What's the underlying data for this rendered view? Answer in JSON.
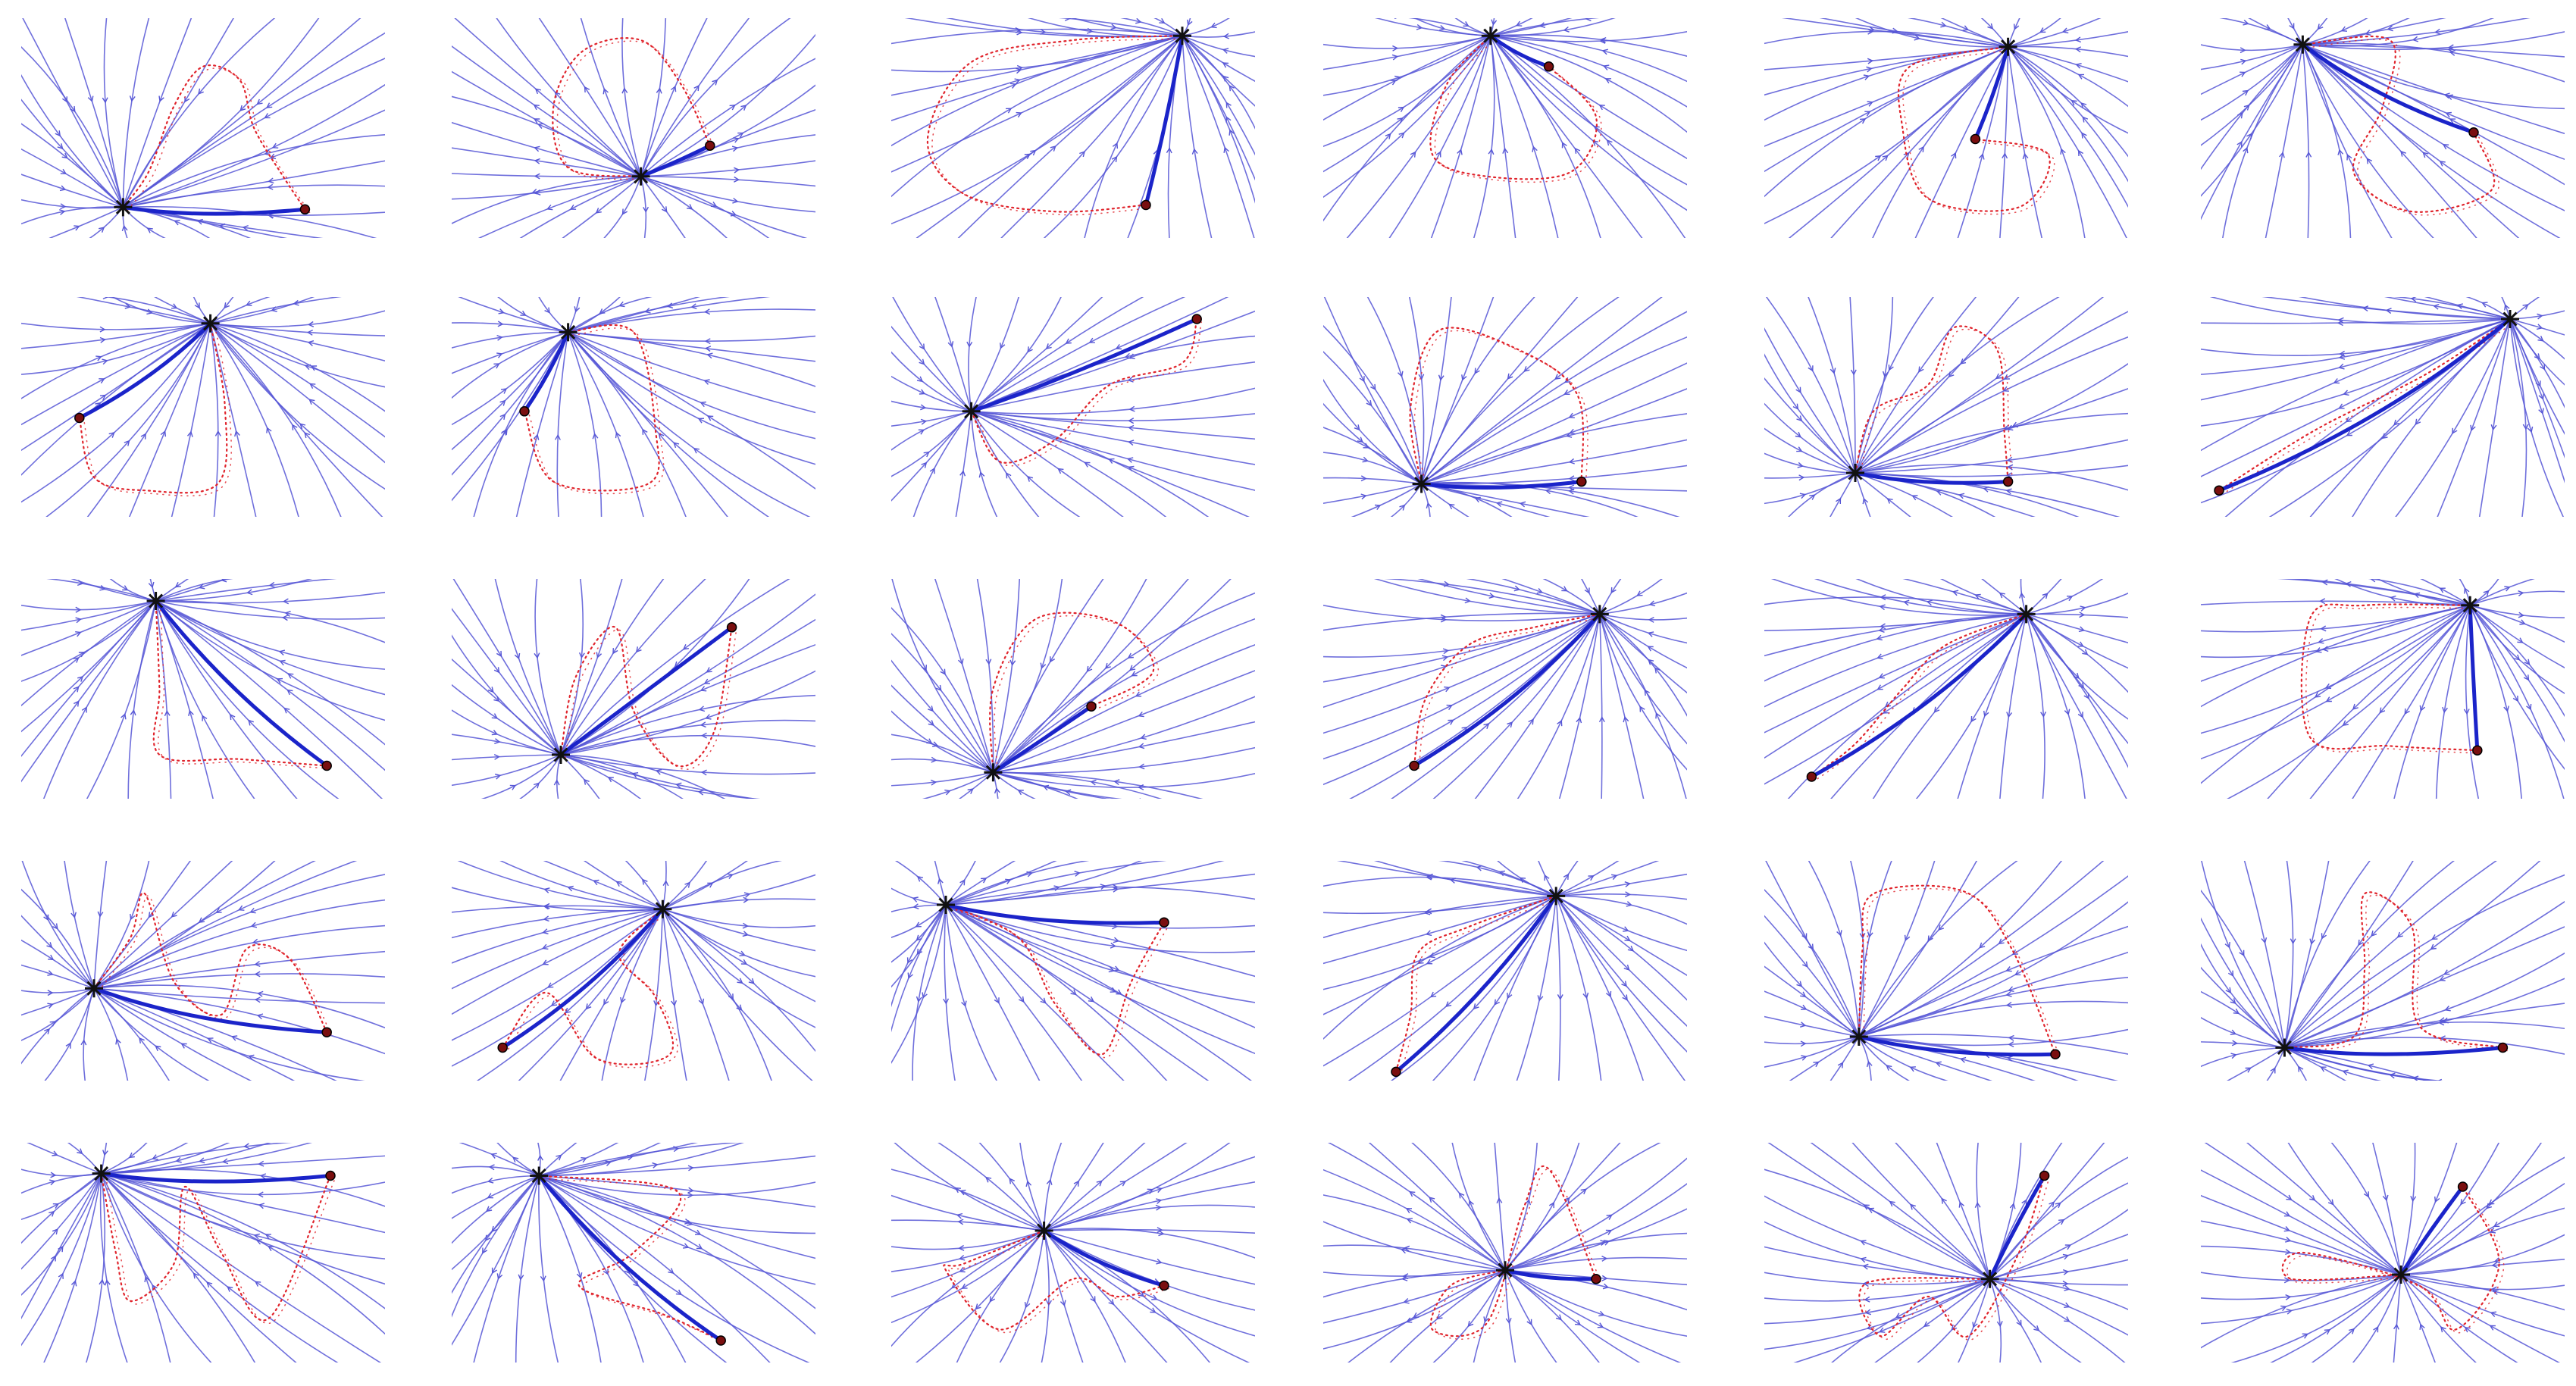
{
  "figure": {
    "rows": 5,
    "columns": 6,
    "colors": {
      "background": "#ffffff",
      "streamline": "#5656d6",
      "main_path": "#1b24c9",
      "dotted_path": "#e0242c",
      "start_marker": "#111111",
      "end_marker": "#7a0f0f"
    },
    "marker_icons": {
      "start": "star-icon",
      "end": "circle-dot-icon"
    },
    "panels": [
      {
        "id": "r1c1",
        "flow": "convergent",
        "start": [
          0.28,
          0.86
        ],
        "end": [
          0.78,
          0.87
        ],
        "loop": [
          [
            0.28,
            0.86
          ],
          [
            0.35,
            0.7
          ],
          [
            0.42,
            0.4
          ],
          [
            0.5,
            0.22
          ],
          [
            0.6,
            0.28
          ],
          [
            0.64,
            0.5
          ],
          [
            0.72,
            0.72
          ],
          [
            0.78,
            0.87
          ]
        ]
      },
      {
        "id": "r1c2",
        "flow": "divergent",
        "start": [
          0.52,
          0.72
        ],
        "end": [
          0.71,
          0.58
        ],
        "loop": [
          [
            0.52,
            0.72
          ],
          [
            0.32,
            0.68
          ],
          [
            0.28,
            0.4
          ],
          [
            0.36,
            0.15
          ],
          [
            0.52,
            0.1
          ],
          [
            0.63,
            0.3
          ],
          [
            0.71,
            0.58
          ]
        ]
      },
      {
        "id": "r1c3",
        "flow": "convergent",
        "start": [
          0.8,
          0.08
        ],
        "end": [
          0.7,
          0.85
        ],
        "loop": [
          [
            0.8,
            0.08
          ],
          [
            0.5,
            0.1
          ],
          [
            0.22,
            0.2
          ],
          [
            0.1,
            0.55
          ],
          [
            0.2,
            0.8
          ],
          [
            0.45,
            0.88
          ],
          [
            0.7,
            0.85
          ]
        ]
      },
      {
        "id": "r1c4",
        "flow": "convergent",
        "start": [
          0.46,
          0.08
        ],
        "end": [
          0.62,
          0.22
        ],
        "loop": [
          [
            0.46,
            0.08
          ],
          [
            0.34,
            0.3
          ],
          [
            0.3,
            0.62
          ],
          [
            0.45,
            0.72
          ],
          [
            0.68,
            0.7
          ],
          [
            0.75,
            0.45
          ],
          [
            0.62,
            0.22
          ]
        ]
      },
      {
        "id": "r1c5",
        "flow": "convergent",
        "start": [
          0.67,
          0.13
        ],
        "end": [
          0.58,
          0.55
        ],
        "loop": [
          [
            0.67,
            0.13
          ],
          [
            0.4,
            0.22
          ],
          [
            0.38,
            0.5
          ],
          [
            0.45,
            0.82
          ],
          [
            0.7,
            0.86
          ],
          [
            0.78,
            0.62
          ],
          [
            0.58,
            0.55
          ]
        ]
      },
      {
        "id": "r1c6",
        "flow": "convergent",
        "start": [
          0.28,
          0.12
        ],
        "end": [
          0.75,
          0.52
        ],
        "loop": [
          [
            0.28,
            0.12
          ],
          [
            0.52,
            0.1
          ],
          [
            0.5,
            0.4
          ],
          [
            0.42,
            0.7
          ],
          [
            0.58,
            0.88
          ],
          [
            0.8,
            0.78
          ],
          [
            0.75,
            0.52
          ]
        ]
      },
      {
        "id": "r2c1",
        "flow": "convergent",
        "start": [
          0.52,
          0.12
        ],
        "end": [
          0.16,
          0.55
        ],
        "loop": [
          [
            0.52,
            0.12
          ],
          [
            0.56,
            0.5
          ],
          [
            0.54,
            0.85
          ],
          [
            0.34,
            0.88
          ],
          [
            0.2,
            0.82
          ],
          [
            0.16,
            0.55
          ]
        ]
      },
      {
        "id": "r2c2",
        "flow": "convergent",
        "start": [
          0.32,
          0.16
        ],
        "end": [
          0.2,
          0.52
        ],
        "loop": [
          [
            0.32,
            0.16
          ],
          [
            0.5,
            0.16
          ],
          [
            0.56,
            0.6
          ],
          [
            0.54,
            0.85
          ],
          [
            0.28,
            0.84
          ],
          [
            0.2,
            0.52
          ]
        ]
      },
      {
        "id": "r2c3",
        "flow": "convergent",
        "start": [
          0.22,
          0.52
        ],
        "end": [
          0.84,
          0.1
        ],
        "loop": [
          [
            0.22,
            0.52
          ],
          [
            0.3,
            0.75
          ],
          [
            0.45,
            0.65
          ],
          [
            0.6,
            0.4
          ],
          [
            0.8,
            0.3
          ],
          [
            0.84,
            0.1
          ]
        ]
      },
      {
        "id": "r2c4",
        "flow": "convergent",
        "start": [
          0.27,
          0.85
        ],
        "end": [
          0.71,
          0.84
        ],
        "loop": [
          [
            0.27,
            0.85
          ],
          [
            0.24,
            0.5
          ],
          [
            0.32,
            0.15
          ],
          [
            0.55,
            0.25
          ],
          [
            0.7,
            0.45
          ],
          [
            0.71,
            0.84
          ]
        ]
      },
      {
        "id": "r2c5",
        "flow": "convergent",
        "start": [
          0.25,
          0.8
        ],
        "end": [
          0.67,
          0.84
        ],
        "loop": [
          [
            0.25,
            0.8
          ],
          [
            0.3,
            0.52
          ],
          [
            0.45,
            0.4
          ],
          [
            0.52,
            0.14
          ],
          [
            0.64,
            0.24
          ],
          [
            0.66,
            0.62
          ],
          [
            0.67,
            0.84
          ]
        ]
      },
      {
        "id": "r2c6",
        "flow": "divergent",
        "start": [
          0.85,
          0.1
        ],
        "end": [
          0.05,
          0.88
        ],
        "loop": [
          [
            0.85,
            0.1
          ],
          [
            0.62,
            0.35
          ],
          [
            0.32,
            0.6
          ],
          [
            0.05,
            0.88
          ]
        ]
      },
      {
        "id": "r3c1",
        "flow": "convergent",
        "start": [
          0.37,
          0.1
        ],
        "end": [
          0.84,
          0.85
        ],
        "loop": [
          [
            0.37,
            0.1
          ],
          [
            0.38,
            0.5
          ],
          [
            0.38,
            0.8
          ],
          [
            0.6,
            0.82
          ],
          [
            0.84,
            0.85
          ]
        ]
      },
      {
        "id": "r3c2",
        "flow": "convergent",
        "start": [
          0.3,
          0.8
        ],
        "end": [
          0.77,
          0.22
        ],
        "loop": [
          [
            0.3,
            0.8
          ],
          [
            0.34,
            0.45
          ],
          [
            0.45,
            0.22
          ],
          [
            0.5,
            0.6
          ],
          [
            0.62,
            0.85
          ],
          [
            0.72,
            0.7
          ],
          [
            0.77,
            0.22
          ]
        ]
      },
      {
        "id": "r3c3",
        "flow": "convergent",
        "start": [
          0.28,
          0.88
        ],
        "end": [
          0.55,
          0.58
        ],
        "loop": [
          [
            0.28,
            0.88
          ],
          [
            0.28,
            0.5
          ],
          [
            0.4,
            0.18
          ],
          [
            0.62,
            0.2
          ],
          [
            0.72,
            0.42
          ],
          [
            0.55,
            0.58
          ]
        ]
      },
      {
        "id": "r3c4",
        "flow": "convergent",
        "start": [
          0.76,
          0.16
        ],
        "end": [
          0.25,
          0.85
        ],
        "loop": [
          [
            0.76,
            0.16
          ],
          [
            0.58,
            0.22
          ],
          [
            0.4,
            0.3
          ],
          [
            0.28,
            0.55
          ],
          [
            0.25,
            0.85
          ]
        ]
      },
      {
        "id": "r3c5",
        "flow": "divergent",
        "start": [
          0.72,
          0.16
        ],
        "end": [
          0.13,
          0.9
        ],
        "loop": [
          [
            0.72,
            0.16
          ],
          [
            0.5,
            0.3
          ],
          [
            0.38,
            0.5
          ],
          [
            0.25,
            0.75
          ],
          [
            0.13,
            0.9
          ]
        ]
      },
      {
        "id": "r3c6",
        "flow": "divergent",
        "start": [
          0.74,
          0.12
        ],
        "end": [
          0.76,
          0.78
        ],
        "loop": [
          [
            0.74,
            0.12
          ],
          [
            0.45,
            0.12
          ],
          [
            0.3,
            0.18
          ],
          [
            0.3,
            0.72
          ],
          [
            0.52,
            0.76
          ],
          [
            0.76,
            0.78
          ]
        ]
      },
      {
        "id": "r4c1",
        "flow": "convergent",
        "start": [
          0.2,
          0.58
        ],
        "end": [
          0.84,
          0.78
        ],
        "loop": [
          [
            0.2,
            0.58
          ],
          [
            0.3,
            0.35
          ],
          [
            0.34,
            0.15
          ],
          [
            0.42,
            0.55
          ],
          [
            0.55,
            0.7
          ],
          [
            0.62,
            0.4
          ],
          [
            0.74,
            0.45
          ],
          [
            0.84,
            0.78
          ]
        ]
      },
      {
        "id": "r4c2",
        "flow": "divergent",
        "start": [
          0.58,
          0.22
        ],
        "end": [
          0.14,
          0.85
        ],
        "loop": [
          [
            0.58,
            0.22
          ],
          [
            0.46,
            0.42
          ],
          [
            0.56,
            0.62
          ],
          [
            0.6,
            0.88
          ],
          [
            0.4,
            0.9
          ],
          [
            0.26,
            0.6
          ],
          [
            0.14,
            0.85
          ]
        ]
      },
      {
        "id": "r4c3",
        "flow": "divergent",
        "start": [
          0.15,
          0.2
        ],
        "end": [
          0.75,
          0.28
        ],
        "loop": [
          [
            0.15,
            0.2
          ],
          [
            0.35,
            0.35
          ],
          [
            0.45,
            0.65
          ],
          [
            0.58,
            0.88
          ],
          [
            0.66,
            0.55
          ],
          [
            0.75,
            0.28
          ]
        ]
      },
      {
        "id": "r4c4",
        "flow": "divergent",
        "start": [
          0.64,
          0.16
        ],
        "end": [
          0.2,
          0.96
        ],
        "loop": [
          [
            0.64,
            0.16
          ],
          [
            0.4,
            0.3
          ],
          [
            0.26,
            0.42
          ],
          [
            0.24,
            0.7
          ],
          [
            0.2,
            0.96
          ]
        ]
      },
      {
        "id": "r4c5",
        "flow": "convergent",
        "start": [
          0.26,
          0.8
        ],
        "end": [
          0.8,
          0.88
        ],
        "loop": [
          [
            0.26,
            0.8
          ],
          [
            0.27,
            0.4
          ],
          [
            0.3,
            0.15
          ],
          [
            0.55,
            0.14
          ],
          [
            0.68,
            0.4
          ],
          [
            0.8,
            0.88
          ]
        ]
      },
      {
        "id": "r4c6",
        "flow": "convergent",
        "start": [
          0.23,
          0.85
        ],
        "end": [
          0.83,
          0.85
        ],
        "loop": [
          [
            0.23,
            0.85
          ],
          [
            0.42,
            0.8
          ],
          [
            0.45,
            0.5
          ],
          [
            0.45,
            0.15
          ],
          [
            0.58,
            0.3
          ],
          [
            0.6,
            0.75
          ],
          [
            0.83,
            0.85
          ]
        ]
      },
      {
        "id": "r5c1",
        "flow": "convergent",
        "start": [
          0.22,
          0.14
        ],
        "end": [
          0.85,
          0.15
        ],
        "loop": [
          [
            0.22,
            0.14
          ],
          [
            0.26,
            0.5
          ],
          [
            0.3,
            0.72
          ],
          [
            0.42,
            0.55
          ],
          [
            0.45,
            0.2
          ],
          [
            0.55,
            0.5
          ],
          [
            0.68,
            0.8
          ],
          [
            0.85,
            0.15
          ]
        ]
      },
      {
        "id": "r5c2",
        "flow": "divergent",
        "start": [
          0.24,
          0.15
        ],
        "end": [
          0.74,
          0.9
        ],
        "loop": [
          [
            0.24,
            0.15
          ],
          [
            0.62,
            0.22
          ],
          [
            0.5,
            0.5
          ],
          [
            0.35,
            0.65
          ],
          [
            0.58,
            0.78
          ],
          [
            0.74,
            0.9
          ]
        ]
      },
      {
        "id": "r5c3",
        "flow": "divergent",
        "start": [
          0.42,
          0.4
        ],
        "end": [
          0.75,
          0.65
        ],
        "loop": [
          [
            0.42,
            0.4
          ],
          [
            0.2,
            0.55
          ],
          [
            0.15,
            0.58
          ],
          [
            0.3,
            0.85
          ],
          [
            0.5,
            0.62
          ],
          [
            0.62,
            0.7
          ],
          [
            0.75,
            0.65
          ]
        ]
      },
      {
        "id": "r5c4",
        "flow": "divergent",
        "start": [
          0.5,
          0.58
        ],
        "end": [
          0.75,
          0.62
        ],
        "loop": [
          [
            0.5,
            0.58
          ],
          [
            0.35,
            0.65
          ],
          [
            0.3,
            0.85
          ],
          [
            0.45,
            0.82
          ],
          [
            0.55,
            0.3
          ],
          [
            0.62,
            0.12
          ],
          [
            0.75,
            0.62
          ]
        ]
      },
      {
        "id": "r5c5",
        "flow": "divergent",
        "start": [
          0.62,
          0.62
        ],
        "end": [
          0.77,
          0.15
        ],
        "loop": [
          [
            0.62,
            0.62
          ],
          [
            0.28,
            0.64
          ],
          [
            0.32,
            0.88
          ],
          [
            0.45,
            0.7
          ],
          [
            0.56,
            0.88
          ],
          [
            0.7,
            0.5
          ],
          [
            0.77,
            0.15
          ]
        ]
      },
      {
        "id": "r5c6",
        "flow": "convergent",
        "start": [
          0.55,
          0.6
        ],
        "end": [
          0.72,
          0.2
        ],
        "loop": [
          [
            0.55,
            0.6
          ],
          [
            0.25,
            0.62
          ],
          [
            0.28,
            0.5
          ],
          [
            0.6,
            0.65
          ],
          [
            0.7,
            0.85
          ],
          [
            0.82,
            0.55
          ],
          [
            0.72,
            0.2
          ]
        ]
      }
    ]
  }
}
